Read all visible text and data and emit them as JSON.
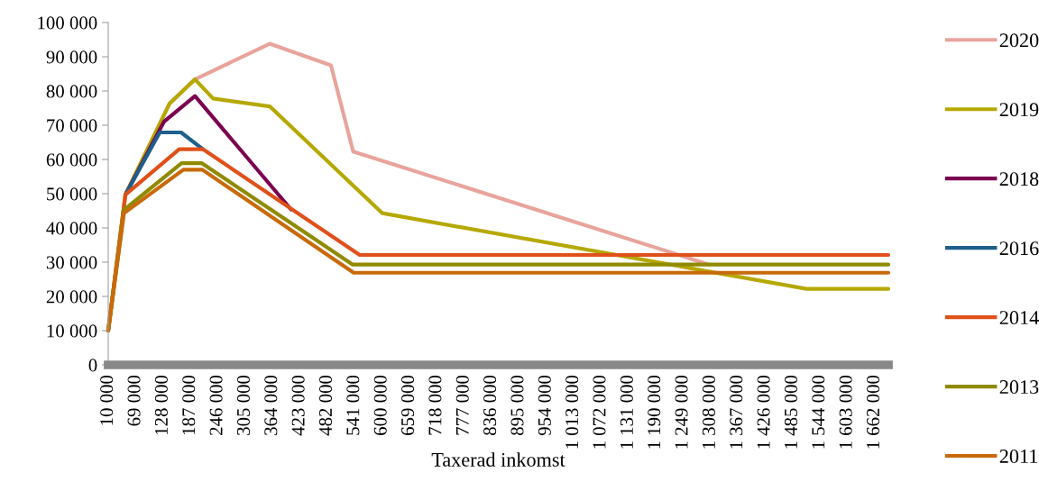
{
  "chart_data": {
    "type": "line",
    "xlabel": "Taxerad inkomst",
    "xlim": [
      10000,
      1691500
    ],
    "ylim": [
      0,
      100000
    ],
    "yticks": [
      {
        "value": 0,
        "label": "0"
      },
      {
        "value": 10000,
        "label": "10 000"
      },
      {
        "value": 20000,
        "label": "20 000"
      },
      {
        "value": 30000,
        "label": "30 000"
      },
      {
        "value": 40000,
        "label": "40 000"
      },
      {
        "value": 50000,
        "label": "50 000"
      },
      {
        "value": 60000,
        "label": "60 000"
      },
      {
        "value": 70000,
        "label": "70 000"
      },
      {
        "value": 80000,
        "label": "80 000"
      },
      {
        "value": 90000,
        "label": "90 000"
      },
      {
        "value": 100000,
        "label": "100 000"
      }
    ],
    "xticks": [
      {
        "value": 10000,
        "label": "10 000"
      },
      {
        "value": 69000,
        "label": "69 000"
      },
      {
        "value": 128000,
        "label": "128 000"
      },
      {
        "value": 187000,
        "label": "187 000"
      },
      {
        "value": 246000,
        "label": "246 000"
      },
      {
        "value": 305000,
        "label": "305 000"
      },
      {
        "value": 364000,
        "label": "364 000"
      },
      {
        "value": 423000,
        "label": "423 000"
      },
      {
        "value": 482000,
        "label": "482 000"
      },
      {
        "value": 541000,
        "label": "541 000"
      },
      {
        "value": 600000,
        "label": "600 000"
      },
      {
        "value": 659000,
        "label": "659 000"
      },
      {
        "value": 718000,
        "label": "718 000"
      },
      {
        "value": 777000,
        "label": "777 000"
      },
      {
        "value": 836000,
        "label": "836 000"
      },
      {
        "value": 895000,
        "label": "895 000"
      },
      {
        "value": 954000,
        "label": "954 000"
      },
      {
        "value": 1013000,
        "label": "1 013 000"
      },
      {
        "value": 1072000,
        "label": "1 072 000"
      },
      {
        "value": 1131000,
        "label": "1 131 000"
      },
      {
        "value": 1190000,
        "label": "1 190 000"
      },
      {
        "value": 1249000,
        "label": "1 249 000"
      },
      {
        "value": 1308000,
        "label": "1 308 000"
      },
      {
        "value": 1367000,
        "label": "1 367 000"
      },
      {
        "value": 1426000,
        "label": "1 426 000"
      },
      {
        "value": 1485000,
        "label": "1 485 000"
      },
      {
        "value": 1544000,
        "label": "1 544 000"
      },
      {
        "value": 1603000,
        "label": "1 603 000"
      },
      {
        "value": 1662000,
        "label": "1 662 000"
      }
    ],
    "grid": false,
    "legend": "right",
    "marker": "none",
    "line_style": "solid",
    "series": [
      {
        "name": "2020",
        "color": "#e8a49c",
        "x": [
          10000,
          47000,
          142000,
          197000,
          358000,
          490000,
          538000,
          1305000
        ],
        "values": [
          10000,
          49700,
          76300,
          83400,
          93800,
          87500,
          62300,
          29300
        ]
      },
      {
        "name": "2019",
        "color": "#b5a800",
        "x": [
          10000,
          47000,
          142000,
          197000,
          236000,
          358000,
          601000,
          1515000,
          1691500
        ],
        "values": [
          10000,
          49700,
          76300,
          83400,
          77800,
          75500,
          44300,
          22200,
          22200
        ]
      },
      {
        "name": "2018",
        "color": "#7b0050",
        "x": [
          47000,
          130000,
          197000,
          404000
        ],
        "values": [
          49700,
          71000,
          78500,
          45400
        ]
      },
      {
        "name": "2016",
        "color": "#1f5f8b",
        "x": [
          47000,
          121000,
          167000,
          214000
        ],
        "values": [
          49700,
          67900,
          67900,
          63000
        ]
      },
      {
        "name": "2014",
        "color": "#e0501a",
        "x": [
          10000,
          47000,
          163000,
          214000,
          552000,
          1691500
        ],
        "values": [
          10000,
          49700,
          63000,
          63000,
          32100,
          32100
        ]
      },
      {
        "name": "2013",
        "color": "#8f8a00",
        "x": [
          10000,
          44000,
          168000,
          212000,
          537000,
          1691500
        ],
        "values": [
          10000,
          45300,
          58900,
          58900,
          29300,
          29300
        ]
      },
      {
        "name": "2011",
        "color": "#c86a0a",
        "x": [
          10000,
          44000,
          172000,
          213000,
          539000,
          1691500
        ],
        "values": [
          10000,
          44300,
          57000,
          57000,
          26900,
          26900
        ]
      }
    ]
  }
}
